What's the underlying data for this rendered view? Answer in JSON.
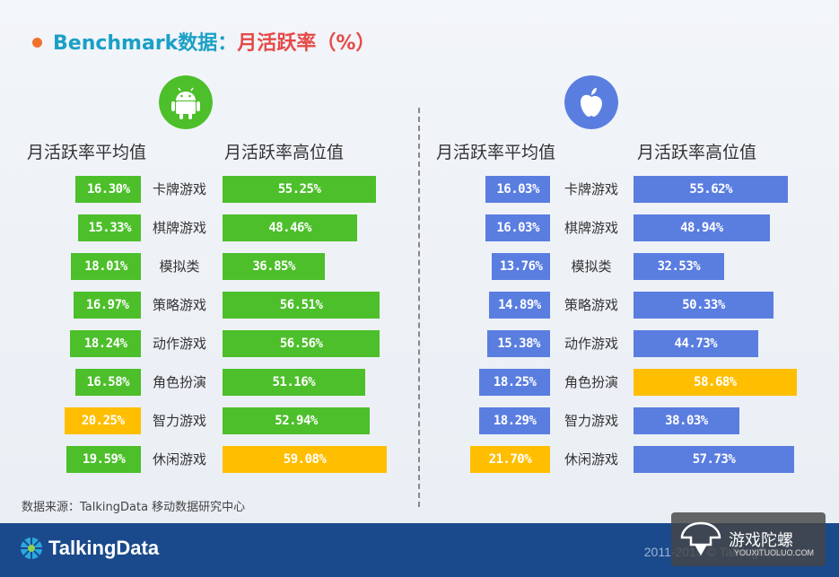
{
  "title": {
    "part1": "Benchmark数据：",
    "part2": "月活跃率（%）"
  },
  "panels": [
    {
      "os": "android-icon",
      "avg_label": "月活跃率平均值",
      "high_label": "月活跃率高位值",
      "color": "#4cbf2a",
      "highlight": "#ffbe00"
    },
    {
      "os": "apple-icon",
      "avg_label": "月活跃率平均值",
      "high_label": "月活跃率高位值",
      "color": "#5a7de0",
      "highlight": "#ffbe00"
    }
  ],
  "chart_data": [
    {
      "type": "bar",
      "platform": "Android",
      "categories": [
        "卡牌游戏",
        "棋牌游戏",
        "模拟类",
        "策略游戏",
        "动作游戏",
        "角色扮演",
        "智力游戏",
        "休闲游戏"
      ],
      "series": [
        {
          "name": "月活跃率平均值",
          "values": [
            16.3,
            15.33,
            18.01,
            16.97,
            18.24,
            16.58,
            20.25,
            19.59
          ],
          "labels": [
            "16.30%",
            "15.33%",
            "18.01%",
            "16.97%",
            "18.24%",
            "16.58%",
            "20.25%",
            "19.59%"
          ],
          "highlight_index": 6
        },
        {
          "name": "月活跃率高位值",
          "values": [
            55.25,
            48.46,
            36.85,
            56.51,
            56.56,
            51.16,
            52.94,
            59.08
          ],
          "labels": [
            "55.25%",
            "48.46%",
            "36.85%",
            "56.51%",
            "56.56%",
            "51.16%",
            "52.94%",
            "59.08%"
          ],
          "highlight_index": 7
        }
      ]
    },
    {
      "type": "bar",
      "platform": "iOS",
      "categories": [
        "卡牌游戏",
        "棋牌游戏",
        "模拟类",
        "策略游戏",
        "动作游戏",
        "角色扮演",
        "智力游戏",
        "休闲游戏"
      ],
      "series": [
        {
          "name": "月活跃率平均值",
          "values": [
            16.03,
            16.03,
            13.76,
            14.89,
            15.38,
            18.25,
            18.29,
            21.7
          ],
          "labels": [
            "16.03%",
            "16.03%",
            "13.76%",
            "14.89%",
            "15.38%",
            "18.25%",
            "18.29%",
            "21.70%"
          ],
          "highlight_index": 7
        },
        {
          "name": "月活跃率高位值",
          "values": [
            55.62,
            48.94,
            32.53,
            50.33,
            44.73,
            58.68,
            38.03,
            57.73
          ],
          "labels": [
            "55.62%",
            "48.94%",
            "32.53%",
            "50.33%",
            "44.73%",
            "58.68%",
            "38.03%",
            "57.73%"
          ],
          "highlight_index": 5
        }
      ]
    }
  ],
  "source": "数据来源：TalkingData 移动数据研究中心",
  "footer": {
    "logo": "TalkingData",
    "copyright": "2011-2015 © TalkingData.com"
  },
  "watermark": {
    "text": "游戏陀螺",
    "sub": "YOUXITUOLUO.COM"
  }
}
